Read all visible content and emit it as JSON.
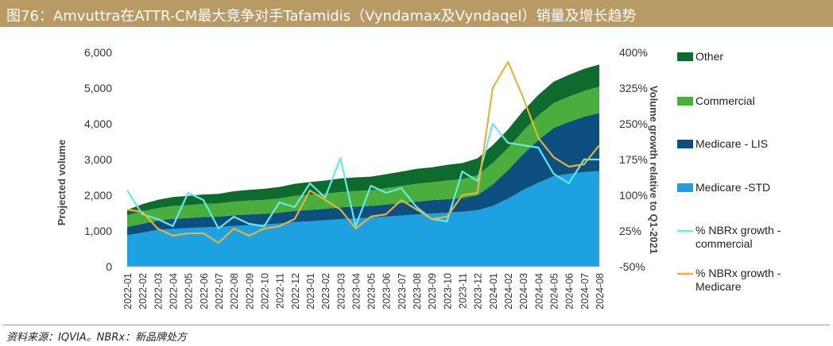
{
  "header": {
    "title": "图76：Amvuttra在ATTR-CM最大竞争对手Tafamidis（Vyndamax及Vyndaqel）销量及增长趋势"
  },
  "footer": {
    "source": "资料来源：IQVIA。NBRx：新品牌处方"
  },
  "colors": {
    "banner": "#b89a64",
    "other": "#0e6b2e",
    "commercial": "#4aae3c",
    "medicare_lis": "#0d4f7f",
    "medicare_std": "#1ea1e0",
    "nbrx_commercial": "#66e8ee",
    "nbrx_medicare": "#e8b33a"
  },
  "chart_data": {
    "type": "area",
    "title": "",
    "xlabel": "",
    "ylabel": "Projected volume",
    "y2label": "Volume growth relative to Q1-2021",
    "ylim": [
      0,
      6000
    ],
    "yticks": [
      "6,000",
      "5,000",
      "4,000",
      "3,000",
      "2,000",
      "1,000",
      "0"
    ],
    "y2lim": [
      -50,
      400
    ],
    "y2ticks": [
      "400%",
      "325%",
      "250%",
      "175%",
      "100%",
      "25%",
      "-50%"
    ],
    "grid": false,
    "legend_position": "right",
    "categories": [
      "2022-01",
      "2022-02",
      "2022-03",
      "2022-04",
      "2022-05",
      "2022-06",
      "2022-07",
      "2022-08",
      "2022-09",
      "2022-10",
      "2022-11",
      "2022-12",
      "2023-01",
      "2023-02",
      "2023-03",
      "2023-04",
      "2023-05",
      "2023-06",
      "2023-07",
      "2023-08",
      "2023-09",
      "2023-10",
      "2023-11",
      "2023-12",
      "2024-01",
      "2024-02",
      "2024-03",
      "2024-04",
      "2024-05",
      "2024-06",
      "2024-07",
      "2024-08"
    ],
    "stacked_series": [
      {
        "name": "Medicare -STD",
        "values": [
          880,
          950,
          1030,
          1060,
          1080,
          1100,
          1110,
          1140,
          1160,
          1180,
          1210,
          1250,
          1270,
          1300,
          1330,
          1350,
          1370,
          1400,
          1430,
          1460,
          1490,
          1510,
          1540,
          1580,
          1700,
          1900,
          2150,
          2350,
          2530,
          2600,
          2650,
          2680
        ]
      },
      {
        "name": "Medicare  - LIS",
        "values": [
          230,
          250,
          260,
          280,
          280,
          290,
          290,
          300,
          300,
          300,
          300,
          310,
          320,
          320,
          330,
          330,
          330,
          340,
          350,
          360,
          370,
          380,
          380,
          420,
          600,
          800,
          1000,
          1200,
          1350,
          1450,
          1550,
          1620
        ]
      },
      {
        "name": "Commercial",
        "values": [
          330,
          350,
          350,
          360,
          360,
          370,
          370,
          380,
          390,
          390,
          400,
          420,
          420,
          420,
          430,
          440,
          440,
          460,
          480,
          500,
          500,
          520,
          530,
          560,
          600,
          620,
          650,
          680,
          700,
          710,
          720,
          740
        ]
      },
      {
        "name": "Other",
        "values": [
          150,
          200,
          230,
          250,
          260,
          260,
          270,
          290,
          300,
          310,
          320,
          340,
          360,
          370,
          380,
          380,
          380,
          390,
          400,
          420,
          420,
          440,
          450,
          470,
          500,
          520,
          560,
          580,
          600,
          610,
          620,
          620
        ]
      }
    ],
    "line_series": [
      {
        "name": "% NBRx growth - commercial",
        "values": [
          110,
          60,
          50,
          35,
          105,
          90,
          30,
          55,
          40,
          35,
          85,
          75,
          125,
          95,
          178,
          35,
          120,
          105,
          115,
          75,
          50,
          45,
          150,
          130,
          250,
          210,
          205,
          200,
          145,
          125,
          175,
          175
        ]
      },
      {
        "name": "% NBRx growth - Medicare",
        "values": [
          70,
          65,
          30,
          15,
          20,
          20,
          0,
          30,
          15,
          30,
          35,
          50,
          110,
          90,
          70,
          30,
          55,
          60,
          90,
          70,
          50,
          55,
          100,
          105,
          325,
          380,
          305,
          220,
          180,
          160,
          165,
          205
        ]
      }
    ]
  }
}
